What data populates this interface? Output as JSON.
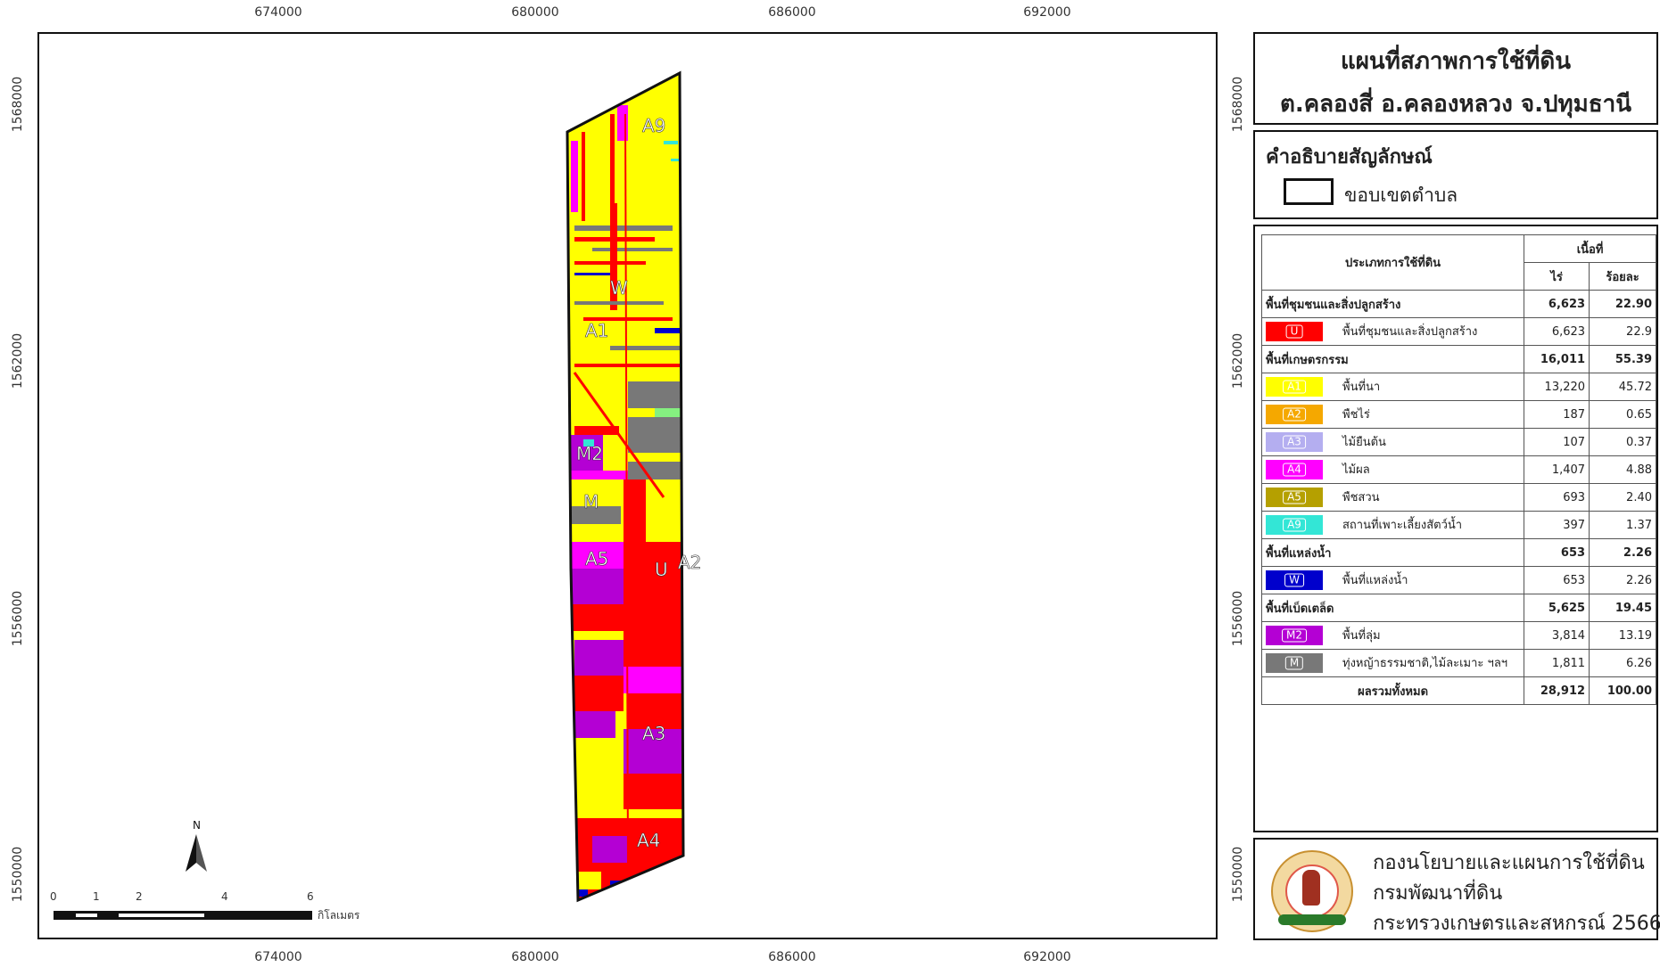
{
  "map_title": {
    "line1": "แผนที่สภาพการใช้ที่ดิน",
    "line2": "ต.คลองสี่ อ.คลองหลวง จ.ปทุมธานี"
  },
  "coords": {
    "top": [
      "674000",
      "680000",
      "686000",
      "692000"
    ],
    "bottom": [
      "674000",
      "680000",
      "686000",
      "692000"
    ],
    "left": [
      "1568000",
      "1562000",
      "1556000",
      "1550000"
    ],
    "right": [
      "1568000",
      "1562000",
      "1556000",
      "1550000"
    ]
  },
  "map_labels": [
    "A9",
    "W",
    "A1",
    "M2",
    "M",
    "A5",
    "U",
    "A2",
    "A3",
    "A4"
  ],
  "north_arrow": "N",
  "scale_bar": {
    "ticks": [
      "0",
      "1",
      "2",
      "4",
      "6"
    ],
    "unit": "กิโลเมตร"
  },
  "legend": {
    "title": "คำอธิบายสัญลักษณ์",
    "boundary_label": "ขอบเขตตำบล"
  },
  "table": {
    "header": {
      "type": "ประเภทการใช้ที่ดิน",
      "area": "เนื้อที่",
      "rai": "ไร่",
      "percent": "ร้อยละ"
    },
    "rows": [
      {
        "kind": "group",
        "label": "พื้นที่ชุมชนและสิ่งปลูกสร้าง",
        "rai": "6,623",
        "pct": "22.90"
      },
      {
        "kind": "item",
        "code": "U",
        "color": "#ff0000",
        "label": "พื้นที่ชุมชนและสิ่งปลูกสร้าง",
        "rai": "6,623",
        "pct": "22.9"
      },
      {
        "kind": "group",
        "label": "พื้นที่เกษตรกรรม",
        "rai": "16,011",
        "pct": "55.39"
      },
      {
        "kind": "item",
        "code": "A1",
        "color": "#ffff00",
        "label": "พื้นที่นา",
        "rai": "13,220",
        "pct": "45.72"
      },
      {
        "kind": "item",
        "code": "A2",
        "color": "#f5a800",
        "label": "พืชไร่",
        "rai": "187",
        "pct": "0.65"
      },
      {
        "kind": "item",
        "code": "A3",
        "color": "#b4aef0",
        "label": "ไม้ยืนต้น",
        "rai": "107",
        "pct": "0.37"
      },
      {
        "kind": "item",
        "code": "A4",
        "color": "#ff00ff",
        "label": "ไม้ผล",
        "rai": "1,407",
        "pct": "4.88"
      },
      {
        "kind": "item",
        "code": "A5",
        "color": "#b5a000",
        "label": "พืชสวน",
        "rai": "693",
        "pct": "2.40"
      },
      {
        "kind": "item",
        "code": "A9",
        "color": "#33e6d6",
        "label": "สถานที่เพาะเลี้ยงสัตว์น้ำ",
        "rai": "397",
        "pct": "1.37"
      },
      {
        "kind": "group",
        "label": "พื้นที่แหล่งน้ำ",
        "rai": "653",
        "pct": "2.26"
      },
      {
        "kind": "item",
        "code": "W",
        "color": "#0000cc",
        "label": "พื้นที่แหล่งน้ำ",
        "rai": "653",
        "pct": "2.26"
      },
      {
        "kind": "group",
        "label": "พื้นที่เบ็ดเตล็ด",
        "rai": "5,625",
        "pct": "19.45"
      },
      {
        "kind": "item",
        "code": "M2",
        "color": "#b400d4",
        "label": "พื้นที่ลุ่ม",
        "rai": "3,814",
        "pct": "13.19"
      },
      {
        "kind": "item",
        "code": "M",
        "color": "#787878",
        "label": "ทุ่งหญ้าธรรมชาติ,ไม้ละเมาะ ฯลฯ",
        "rai": "1,811",
        "pct": "6.26"
      }
    ],
    "total": {
      "label": "ผลรวมทั้งหมด",
      "rai": "28,912",
      "pct": "100.00"
    }
  },
  "org": {
    "line1": "กองนโยบายและแผนการใช้ที่ดิน",
    "line2": "กรมพัฒนาที่ดิน",
    "line3": "กระทรวงเกษตรและสหกรณ์ 2566"
  },
  "colors": {
    "U": "#ff0000",
    "A1": "#ffff00",
    "A2": "#f5a800",
    "A3": "#b4aef0",
    "A4": "#ff00ff",
    "A5": "#b5a000",
    "A9": "#33e6d6",
    "W": "#0000cc",
    "M2": "#b400d4",
    "M": "#787878"
  }
}
